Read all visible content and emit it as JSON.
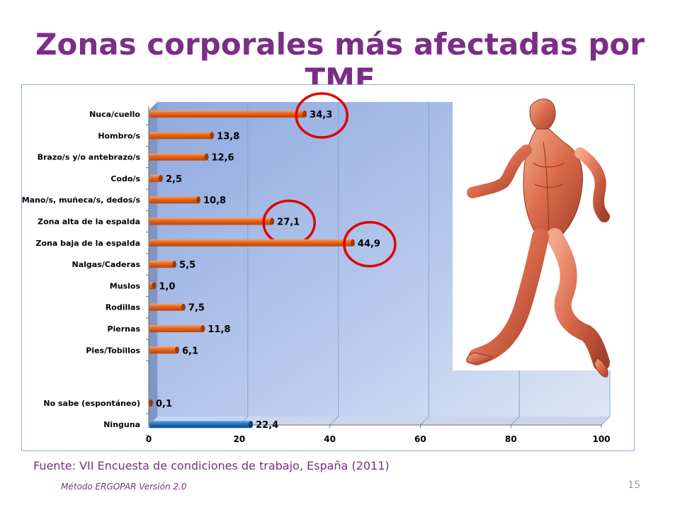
{
  "slide": {
    "title": "Zonas corporales más afectadas por TME",
    "source": "Fuente: VII Encuesta de condiciones de trabajo, España (2011)",
    "footer": "Método ERGOPAR Versión 2.0",
    "page_number": "15"
  },
  "image": {
    "icon": "running-anatomy-figure"
  },
  "chart_data": {
    "type": "bar",
    "orientation": "horizontal",
    "categories": [
      "Nuca/cuello",
      "Hombro/s",
      "Brazo/s y/o antebrazo/s",
      "Codo/s",
      "Mano/s, muñeca/s, dedos/s",
      "Zona alta de la espalda",
      "Zona baja de la espalda",
      "Nalgas/Caderas",
      "Muslos",
      "Rodillas",
      "Piernas",
      "Pies/Tobillos",
      "No sabe (espontáneo)",
      "Ninguna"
    ],
    "values": [
      34.3,
      13.8,
      12.6,
      2.5,
      10.8,
      27.1,
      44.9,
      5.5,
      1.0,
      7.5,
      11.8,
      6.1,
      0.1,
      22.4
    ],
    "value_labels": [
      "34,3",
      "13,8",
      "12,6",
      "2,5",
      "10,8",
      "27,1",
      "44,9",
      "5,5",
      "1,0",
      "7,5",
      "11,8",
      "6,1",
      "0,1",
      "22,4"
    ],
    "highlighted": [
      "Nuca/cuello",
      "Zona alta de la espalda",
      "Zona baja de la espalda"
    ],
    "xlim": [
      0,
      100
    ],
    "x_ticks": [
      "0",
      "20",
      "40",
      "60",
      "80",
      "100"
    ],
    "grid": true,
    "colors": {
      "bar": "#e8621a",
      "bar_ninguna": "#1f6fc6",
      "highlight_circle": "#e00000",
      "plot_background": "#a7bde6"
    }
  }
}
